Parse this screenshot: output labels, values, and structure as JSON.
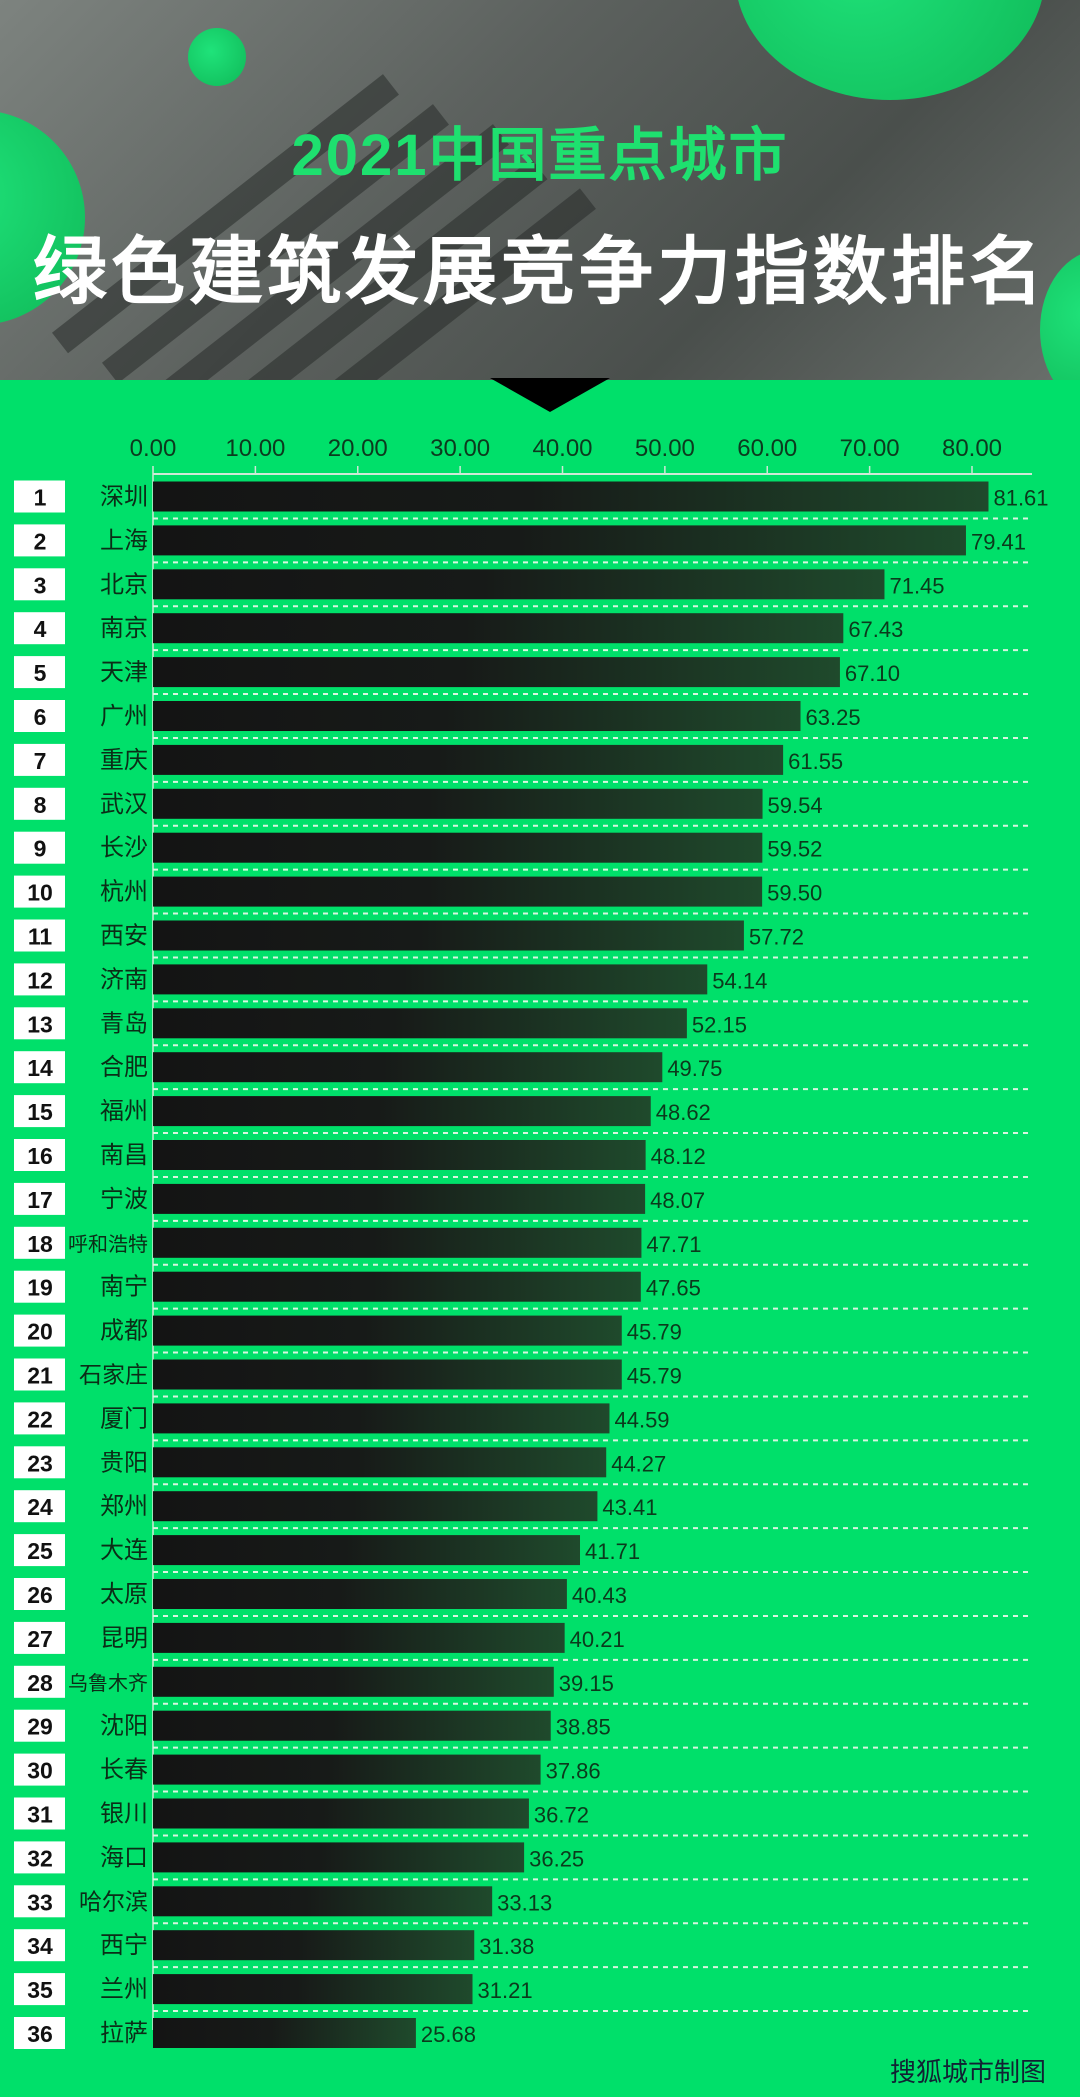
{
  "header": {
    "title_line1": "2021中国重点城市",
    "title_line2": "绿色建筑发展竞争力指数排名"
  },
  "footer": {
    "credit": "搜狐城市制图"
  },
  "colors": {
    "background": "#00e06a",
    "bar_dark": "#161616",
    "bar_light": "#1f4a2c",
    "badge": "#ffffff"
  },
  "chart_data": {
    "type": "bar",
    "orientation": "horizontal",
    "title": "2021中国重点城市绿色建筑发展竞争力指数排名",
    "xlim": [
      0,
      80
    ],
    "xticks": [
      "0.00",
      "10.00",
      "20.00",
      "30.00",
      "40.00",
      "50.00",
      "60.00",
      "70.00",
      "80.00"
    ],
    "ranks": [
      "1",
      "2",
      "3",
      "4",
      "5",
      "6",
      "7",
      "8",
      "9",
      "10",
      "11",
      "12",
      "13",
      "14",
      "15",
      "16",
      "17",
      "18",
      "19",
      "20",
      "21",
      "22",
      "23",
      "24",
      "25",
      "26",
      "27",
      "28",
      "29",
      "30",
      "31",
      "32",
      "33",
      "34",
      "35",
      "36"
    ],
    "categories": [
      "深圳",
      "上海",
      "北京",
      "南京",
      "天津",
      "广州",
      "重庆",
      "武汉",
      "长沙",
      "杭州",
      "西安",
      "济南",
      "青岛",
      "合肥",
      "福州",
      "南昌",
      "宁波",
      "呼和浩特",
      "南宁",
      "成都",
      "石家庄",
      "厦门",
      "贵阳",
      "郑州",
      "大连",
      "太原",
      "昆明",
      "乌鲁木齐",
      "沈阳",
      "长春",
      "银川",
      "海口",
      "哈尔滨",
      "西宁",
      "兰州",
      "拉萨"
    ],
    "values": [
      81.61,
      79.41,
      71.45,
      67.43,
      67.1,
      63.25,
      61.55,
      59.54,
      59.52,
      59.5,
      57.72,
      54.14,
      52.15,
      49.75,
      48.62,
      48.12,
      48.07,
      47.71,
      47.65,
      45.79,
      45.79,
      44.59,
      44.27,
      43.41,
      41.71,
      40.43,
      40.21,
      39.15,
      38.85,
      37.86,
      36.72,
      36.25,
      33.13,
      31.38,
      31.21,
      25.68
    ],
    "value_labels": [
      "81.61",
      "79.41",
      "71.45",
      "67.43",
      "67.10",
      "63.25",
      "61.55",
      "59.54",
      "59.52",
      "59.50",
      "57.72",
      "54.14",
      "52.15",
      "49.75",
      "48.62",
      "48.12",
      "48.07",
      "47.71",
      "47.65",
      "45.79",
      "45.79",
      "44.59",
      "44.27",
      "43.41",
      "41.71",
      "40.43",
      "40.21",
      "39.15",
      "38.85",
      "37.86",
      "36.72",
      "36.25",
      "33.13",
      "31.38",
      "31.21",
      "25.68"
    ]
  }
}
